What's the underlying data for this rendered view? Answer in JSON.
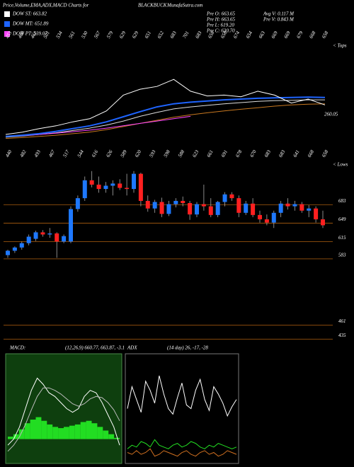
{
  "header": {
    "title": "Price,Volume,EMA,ADX,MACD Charts for",
    "symbol": "BLACKBUCK",
    "site": "MunafaSutra.com",
    "legend": [
      {
        "label": "DOW ST: 663.82",
        "color": "#ffffff"
      },
      {
        "label": "DOW MT: 651.89",
        "color": "#1e64ff"
      },
      {
        "label": "DOW PT: 539.07",
        "color": "#ff44ff"
      }
    ],
    "stats": [
      "Pre  O: 663.65",
      "Pre  H: 663.65",
      "Pre  L: 619.20",
      "Pre  C: 630.70",
      "Avg V: 0.117 M",
      "Pre  V: 0.843 M"
    ]
  },
  "chart_data": [
    {
      "type": "line",
      "side_label": "< Tops",
      "end_label": 260.05,
      "ylim": [
        572,
        824
      ],
      "annotations": [
        "453",
        "460",
        "461",
        "501",
        "534",
        "561",
        "530",
        "567",
        "579",
        "629",
        "629",
        "651",
        "652",
        "683",
        "701",
        "683",
        "658",
        "658",
        "674",
        "654",
        "663",
        "669",
        "669",
        "679",
        "668",
        "658"
      ],
      "series": [
        {
          "color": "#c87820",
          "values": [
            580,
            582,
            585,
            588,
            592,
            596,
            602,
            610,
            618,
            626,
            634,
            640,
            645,
            650,
            654,
            658,
            662,
            665,
            667,
            668
          ]
        },
        {
          "color": "#dddddd",
          "values": [
            583,
            586,
            590,
            594,
            600,
            606,
            614,
            624,
            636,
            646,
            655,
            660,
            664,
            668,
            671,
            674,
            676,
            677,
            678,
            678
          ]
        },
        {
          "color": "#ff44ff",
          "values": [
            585,
            587,
            590,
            593,
            597,
            601,
            606,
            612,
            618,
            624,
            630,
            636,
            null,
            null,
            null,
            null,
            null,
            null,
            null,
            null
          ]
        },
        {
          "color": "#1e64ff",
          "values": [
            585,
            588,
            592,
            598,
            605,
            612,
            622,
            635,
            648,
            660,
            668,
            672,
            675,
            678,
            680,
            682,
            683,
            684,
            685,
            684
          ]
        },
        {
          "color": "#ffffff",
          "values": [
            590,
            596,
            605,
            612,
            622,
            630,
            650,
            690,
            705,
            712,
            730,
            700,
            688,
            690,
            686,
            700,
            690,
            670,
            680,
            665
          ]
        }
      ]
    },
    {
      "type": "candlestick",
      "side_label": "< Lows",
      "ylim": [
        421,
        763
      ],
      "yticks": [
        683,
        649,
        615,
        583,
        461,
        435
      ],
      "grid_color": "#b06010",
      "up_color": "#1e78ff",
      "down_color": "#ff2020",
      "annotations": [
        "440",
        "482",
        "493",
        "467",
        "517",
        "544",
        "616",
        "626",
        "589",
        "620",
        "593",
        "598",
        "588",
        "623",
        "661",
        "691",
        "678",
        "670",
        "683",
        "683",
        "641",
        "668",
        "658"
      ],
      "open": [
        590,
        598,
        604,
        612,
        620,
        632,
        628,
        630,
        615,
        615,
        675,
        695,
        728,
        720,
        712,
        718,
        722,
        714,
        712,
        740,
        690,
        676,
        688,
        666,
        684,
        690,
        686,
        665,
        684,
        680,
        664,
        688,
        702,
        695,
        668,
        685,
        664,
        656,
        650,
        668,
        685,
        680,
        684,
        672,
        676,
        656
      ],
      "high": [
        600,
        606,
        615,
        628,
        635,
        636,
        640,
        632,
        628,
        680,
        700,
        735,
        745,
        735,
        725,
        728,
        730,
        740,
        745,
        742,
        700,
        692,
        696,
        690,
        695,
        698,
        690,
        688,
        720,
        695,
        690,
        706,
        706,
        700,
        690,
        695,
        672,
        665,
        672,
        690,
        695,
        690,
        688,
        682,
        680,
        672
      ],
      "low": [
        585,
        594,
        600,
        608,
        616,
        624,
        622,
        585,
        612,
        612,
        670,
        690,
        715,
        705,
        705,
        700,
        710,
        700,
        705,
        680,
        670,
        668,
        660,
        662,
        678,
        680,
        655,
        660,
        672,
        660,
        660,
        680,
        690,
        660,
        664,
        660,
        650,
        645,
        640,
        660,
        674,
        672,
        668,
        660,
        650,
        640
      ],
      "close": [
        598,
        604,
        612,
        624,
        632,
        628,
        630,
        615,
        625,
        675,
        695,
        728,
        720,
        712,
        718,
        722,
        714,
        712,
        740,
        690,
        676,
        688,
        666,
        684,
        690,
        686,
        665,
        684,
        680,
        664,
        688,
        702,
        695,
        668,
        685,
        664,
        656,
        650,
        668,
        685,
        680,
        684,
        672,
        676,
        656,
        645
      ]
    },
    {
      "type": "macd",
      "title": "MACD:",
      "subtitle": "(12,26,9) 660.77, 663.87, -3.1",
      "ylim": [
        -20,
        70
      ],
      "background": "#0e3f0e",
      "bar_color": "#22dd22",
      "series": [
        {
          "color": "#ffffff",
          "values": [
            -5,
            0,
            10,
            25,
            40,
            50,
            45,
            38,
            35,
            30,
            25,
            22,
            25,
            35,
            40,
            38,
            30,
            20,
            10,
            -5
          ]
        },
        {
          "color": "#bbbbbb",
          "values": [
            -10,
            -5,
            2,
            12,
            24,
            35,
            42,
            42,
            40,
            37,
            33,
            29,
            27,
            29,
            33,
            35,
            34,
            30,
            24,
            15
          ]
        }
      ],
      "bars": [
        2,
        4,
        8,
        13,
        16,
        18,
        15,
        12,
        10,
        9,
        10,
        11,
        12,
        14,
        15,
        13,
        10,
        7,
        4,
        1
      ]
    },
    {
      "type": "adx",
      "title": "ADX",
      "subtitle": "(14 day) 26, -17, -28",
      "ylim": [
        0,
        60
      ],
      "series": [
        {
          "color": "#ffffff",
          "values": [
            30,
            42,
            35,
            28,
            45,
            40,
            33,
            48,
            38,
            30,
            27,
            36,
            44,
            32,
            30,
            40,
            46,
            35,
            29,
            42,
            38,
            33,
            26,
            31,
            35
          ]
        },
        {
          "color": "#22dd22",
          "values": [
            8,
            10,
            9,
            12,
            11,
            9,
            13,
            10,
            9,
            8,
            10,
            11,
            9,
            10,
            12,
            11,
            9,
            8,
            10,
            9,
            11,
            10,
            9,
            8,
            9
          ]
        },
        {
          "color": "#d07020",
          "values": [
            6,
            5,
            7,
            5,
            6,
            8,
            4,
            5,
            7,
            6,
            5,
            4,
            6,
            7,
            5,
            4,
            6,
            7,
            5,
            6,
            4,
            5,
            7,
            6,
            5
          ]
        }
      ]
    }
  ]
}
